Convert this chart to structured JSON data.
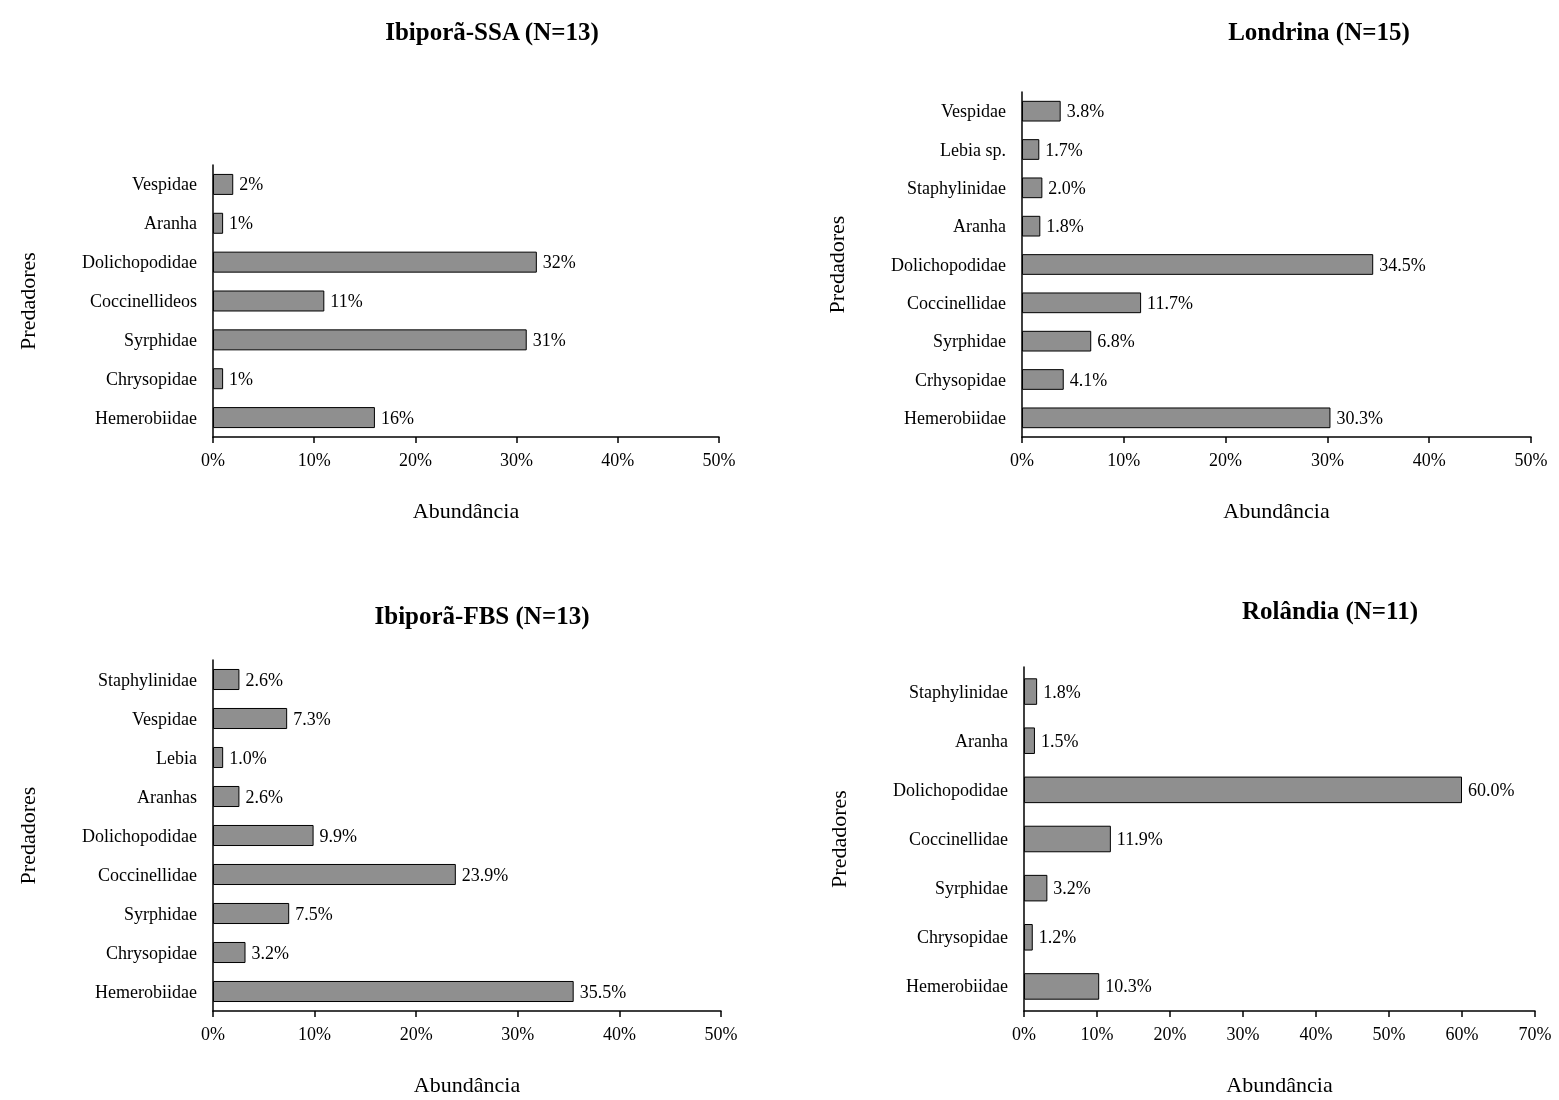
{
  "chart_data": [
    {
      "type": "bar",
      "title": "Ibiporã-SSA (N=13)",
      "xlabel": "Abundância",
      "ylabel": "Predadores",
      "orientation": "horizontal",
      "categories": [
        "Vespidae",
        "Aranha",
        "Dolichopodidae",
        "Coccinellideos",
        "Syrphidae",
        "Chrysopidae",
        "Hemerobiidae"
      ],
      "values": [
        2,
        1,
        32,
        11,
        31,
        1,
        16
      ],
      "value_labels": [
        "2%",
        "1%",
        "32%",
        "11%",
        "31%",
        "1%",
        "16%"
      ],
      "color": "#8f8f8f",
      "xlim": [
        0,
        50
      ],
      "xticks": [
        {
          "value": 0,
          "label": "0%"
        },
        {
          "value": 10,
          "label": "10%"
        },
        {
          "value": 20,
          "label": "20%"
        },
        {
          "value": 30,
          "label": "30%"
        },
        {
          "value": 40,
          "label": "40%"
        },
        {
          "value": 50,
          "label": "50%"
        }
      ]
    },
    {
      "type": "bar",
      "title": "Londrina (N=15)",
      "xlabel": "Abundância",
      "ylabel": "Predadores",
      "orientation": "horizontal",
      "categories": [
        "Vespidae",
        "Lebia sp.",
        "Staphylinidae",
        "Aranha",
        "Dolichopodidae",
        "Coccinellidae",
        "Syrphidae",
        "Crhysopidae",
        "Hemerobiidae"
      ],
      "values": [
        3.8,
        1.7,
        2.0,
        1.8,
        34.5,
        11.7,
        6.8,
        4.1,
        30.3
      ],
      "value_labels": [
        "3.8%",
        "1.7%",
        "2.0%",
        "1.8%",
        "34.5%",
        "11.7%",
        "6.8%",
        "4.1%",
        "30.3%"
      ],
      "color": "#8f8f8f",
      "xlim": [
        0,
        50
      ],
      "xticks": [
        {
          "value": 0,
          "label": "0%"
        },
        {
          "value": 10,
          "label": "10%"
        },
        {
          "value": 20,
          "label": "20%"
        },
        {
          "value": 30,
          "label": "30%"
        },
        {
          "value": 40,
          "label": "40%"
        },
        {
          "value": 50,
          "label": "50%"
        }
      ]
    },
    {
      "type": "bar",
      "title": "Ibiporã-FBS (N=13)",
      "xlabel": "Abundância",
      "ylabel": "Predadores",
      "orientation": "horizontal",
      "categories": [
        "Staphylinidae",
        "Vespidae",
        "Lebia",
        "Aranhas",
        "Dolichopodidae",
        "Coccinellidae",
        "Syrphidae",
        "Chrysopidae",
        "Hemerobiidae"
      ],
      "values": [
        2.6,
        7.3,
        1.0,
        2.6,
        9.9,
        23.9,
        7.5,
        3.2,
        35.5
      ],
      "value_labels": [
        "2.6%",
        "7.3%",
        "1.0%",
        "2.6%",
        "9.9%",
        "23.9%",
        "7.5%",
        "3.2%",
        "35.5%"
      ],
      "color": "#8f8f8f",
      "xlim": [
        0,
        50
      ],
      "xticks": [
        {
          "value": 0,
          "label": "0%"
        },
        {
          "value": 10,
          "label": "10%"
        },
        {
          "value": 20,
          "label": "20%"
        },
        {
          "value": 30,
          "label": "30%"
        },
        {
          "value": 40,
          "label": "40%"
        },
        {
          "value": 50,
          "label": "50%"
        }
      ]
    },
    {
      "type": "bar",
      "title": "Rolândia (N=11)",
      "xlabel": "Abundância",
      "ylabel": "Predadores",
      "orientation": "horizontal",
      "categories": [
        "Staphylinidae",
        "Aranha",
        "Dolichopodidae",
        "Coccinellidae",
        "Syrphidae",
        "Chrysopidae",
        "Hemerobiidae"
      ],
      "values": [
        1.8,
        1.5,
        60.0,
        11.9,
        3.2,
        1.2,
        10.3
      ],
      "value_labels": [
        "1.8%",
        "1.5%",
        "60.0%",
        "11.9%",
        "3.2%",
        "1.2%",
        "10.3%"
      ],
      "color": "#8f8f8f",
      "xlim": [
        0,
        70
      ],
      "xticks": [
        {
          "value": 0,
          "label": "0%"
        },
        {
          "value": 10,
          "label": "10%"
        },
        {
          "value": 20,
          "label": "20%"
        },
        {
          "value": 30,
          "label": "30%"
        },
        {
          "value": 40,
          "label": "40%"
        },
        {
          "value": 50,
          "label": "50%"
        },
        {
          "value": 60,
          "label": "60%"
        },
        {
          "value": 70,
          "label": "70%"
        }
      ]
    }
  ]
}
